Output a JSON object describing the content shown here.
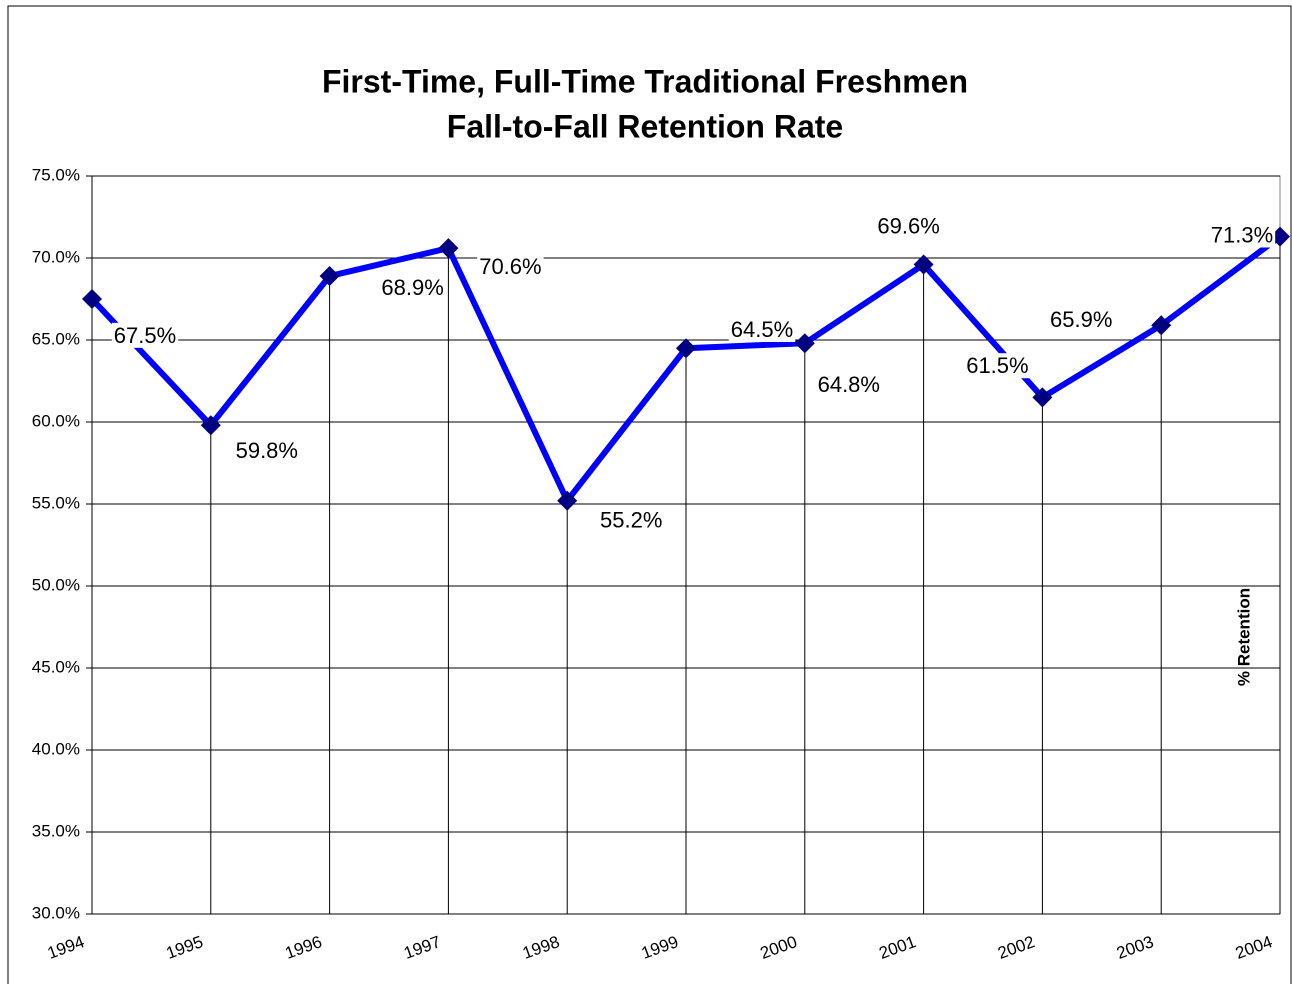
{
  "chart_data": {
    "type": "line",
    "title": "First-Time, Full-Time Traditional Freshmen",
    "subtitle": "Fall-to-Fall Retention Rate",
    "y_label": "% Retention",
    "categories": [
      "1994",
      "1995",
      "1996",
      "1997",
      "1998",
      "1999",
      "2000",
      "2001",
      "2002",
      "2003",
      "2004"
    ],
    "series": [
      {
        "name": "% Retention",
        "color": "#0000ff",
        "marker_color": "#000080",
        "values": [
          67.5,
          59.8,
          68.9,
          70.6,
          55.2,
          64.5,
          64.8,
          69.6,
          61.5,
          65.9,
          71.3
        ],
        "value_labels": [
          "67.5%",
          "59.8%",
          "68.9%",
          "70.6%",
          "55.2%",
          "64.5%",
          "64.8%",
          "69.6%",
          "61.5%",
          "65.9%",
          "71.3%"
        ]
      }
    ],
    "ylim": [
      30,
      75
    ],
    "yticks": [
      {
        "value": 30,
        "label": "30.0%"
      },
      {
        "value": 35,
        "label": "35.0%"
      },
      {
        "value": 40,
        "label": "40.0%"
      },
      {
        "value": 45,
        "label": "45.0%"
      },
      {
        "value": 50,
        "label": "50.0%"
      },
      {
        "value": 55,
        "label": "55.0%"
      },
      {
        "value": 60,
        "label": "60.0%"
      },
      {
        "value": 65,
        "label": "65.0%"
      },
      {
        "value": 70,
        "label": "70.0%"
      },
      {
        "value": 75,
        "label": "75.0%"
      }
    ],
    "grid": true,
    "drop_lines": true
  }
}
